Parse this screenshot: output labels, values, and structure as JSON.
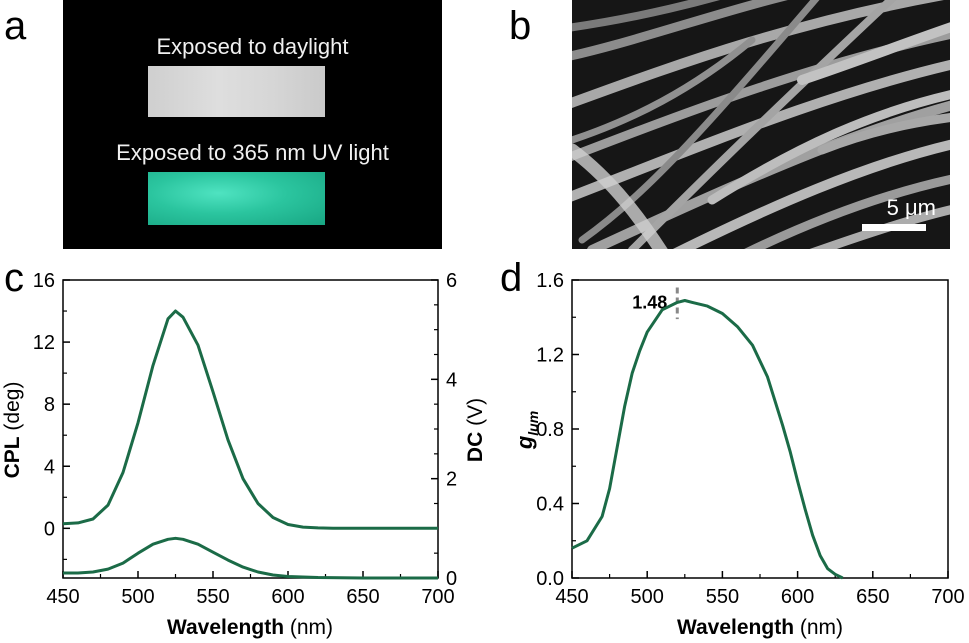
{
  "panels": {
    "a": {
      "letter": "a",
      "caption_top": "Exposed to daylight",
      "caption_bottom": "Exposed to 365 nm UV light"
    },
    "b": {
      "letter": "b",
      "scale_label": "5 μm"
    },
    "c": {
      "letter": "c"
    },
    "d": {
      "letter": "d"
    }
  },
  "colors": {
    "curve": "#1b6b47",
    "marker": "#888888"
  },
  "chart_data": [
    {
      "type": "line",
      "panel": "c",
      "x_axis": {
        "label_bold": "Wavelength",
        "label_unit": " (nm)",
        "range": [
          450,
          700
        ],
        "ticks": [
          450,
          500,
          550,
          600,
          650,
          700
        ]
      },
      "y_left": {
        "label_bold": "CPL",
        "label_unit": " (deg)",
        "range": [
          -3.2,
          16
        ],
        "ticks": [
          0,
          4,
          8,
          12,
          16
        ]
      },
      "y_right": {
        "label_bold": "DC",
        "label_unit": " (V)",
        "range": [
          0,
          6
        ],
        "ticks": [
          0,
          2,
          4,
          6
        ]
      },
      "series": [
        {
          "axis": "left",
          "x": [
            450,
            460,
            470,
            480,
            490,
            500,
            510,
            520,
            525,
            530,
            540,
            550,
            560,
            570,
            580,
            590,
            600,
            610,
            620,
            630,
            650,
            700
          ],
          "y": [
            0.3,
            0.35,
            0.6,
            1.5,
            3.6,
            6.8,
            10.5,
            13.5,
            14.0,
            13.6,
            11.8,
            8.8,
            5.7,
            3.2,
            1.6,
            0.7,
            0.25,
            0.08,
            0.03,
            0.01,
            0,
            0
          ]
        },
        {
          "axis": "right",
          "x": [
            450,
            460,
            470,
            480,
            490,
            500,
            510,
            520,
            525,
            530,
            540,
            550,
            560,
            570,
            580,
            590,
            600,
            620,
            650,
            700
          ],
          "y": [
            0.1,
            0.1,
            0.12,
            0.18,
            0.3,
            0.5,
            0.68,
            0.78,
            0.8,
            0.78,
            0.68,
            0.52,
            0.36,
            0.22,
            0.12,
            0.06,
            0.03,
            0.01,
            0,
            0
          ]
        }
      ]
    },
    {
      "type": "line",
      "panel": "d",
      "x_axis": {
        "label_bold": "Wavelength",
        "label_unit": " (nm)",
        "range": [
          450,
          700
        ],
        "ticks": [
          450,
          500,
          550,
          600,
          650,
          700
        ]
      },
      "y_axis": {
        "label_main": "g",
        "label_sub": "lum",
        "range": [
          0,
          1.6
        ],
        "ticks": [
          "0.0",
          "0.4",
          "0.8",
          "1.2",
          "1.6"
        ]
      },
      "annotation": {
        "label": "1.48",
        "x": 520
      },
      "series": [
        {
          "x": [
            450,
            460,
            470,
            475,
            480,
            485,
            490,
            495,
            500,
            510,
            520,
            525,
            530,
            540,
            550,
            560,
            570,
            580,
            590,
            595,
            600,
            605,
            610,
            615,
            620,
            625,
            630
          ],
          "y": [
            0.16,
            0.2,
            0.33,
            0.48,
            0.7,
            0.92,
            1.1,
            1.22,
            1.32,
            1.44,
            1.48,
            1.49,
            1.48,
            1.46,
            1.42,
            1.35,
            1.25,
            1.08,
            0.82,
            0.68,
            0.52,
            0.37,
            0.23,
            0.12,
            0.05,
            0.02,
            0.0
          ]
        }
      ]
    }
  ]
}
